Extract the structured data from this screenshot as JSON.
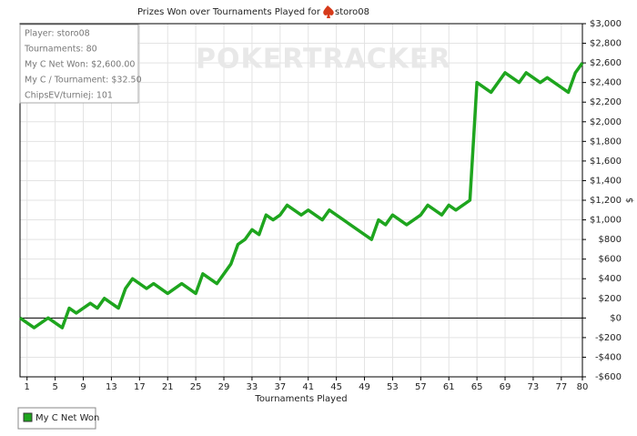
{
  "chart_data": {
    "type": "line",
    "title": "Prizes Won over Tournaments Played for",
    "player_name": "storo08",
    "watermark": "POKERTRACKER",
    "x_label": "Tournaments Played",
    "y_label": "$",
    "info_box": [
      "Player: storo08",
      "Tournaments: 80",
      "My C Net Won: $2,600.00",
      "My C / Tournament: $32.50",
      "ChipsEV/turniej: 101"
    ],
    "x": [
      0,
      2,
      4,
      6,
      7,
      8,
      10,
      11,
      12,
      13,
      14,
      15,
      16,
      18,
      19,
      21,
      23,
      25,
      26,
      28,
      30,
      31,
      32,
      33,
      34,
      35,
      36,
      37,
      38,
      40,
      41,
      43,
      44,
      50,
      51,
      52,
      53,
      55,
      57,
      58,
      60,
      61,
      62,
      64,
      65,
      67,
      69,
      71,
      72,
      74,
      75,
      78,
      79,
      80
    ],
    "series": [
      {
        "name": "My C Net Won",
        "color": "#1ea51e",
        "values": [
          0,
          -100,
          0,
          -100,
          100,
          50,
          150,
          100,
          200,
          150,
          100,
          300,
          400,
          300,
          350,
          250,
          350,
          250,
          450,
          350,
          550,
          750,
          800,
          900,
          850,
          1050,
          1000,
          1050,
          1150,
          1050,
          1100,
          1000,
          1100,
          800,
          1000,
          950,
          1050,
          950,
          1050,
          1150,
          1050,
          1150,
          1100,
          1200,
          2400,
          2300,
          2500,
          2400,
          2500,
          2400,
          2450,
          2300,
          2500,
          2600
        ]
      }
    ],
    "xlim": [
      0,
      80
    ],
    "xticks": [
      1,
      5,
      9,
      13,
      17,
      21,
      25,
      29,
      33,
      37,
      41,
      45,
      49,
      53,
      57,
      61,
      65,
      69,
      73,
      77,
      80
    ],
    "ylim": [
      -600,
      3000
    ],
    "yticks": [
      {
        "value": -600,
        "label": "-$600"
      },
      {
        "value": -400,
        "label": "-$400"
      },
      {
        "value": -200,
        "label": "-$200"
      },
      {
        "value": 0,
        "label": "$0"
      },
      {
        "value": 200,
        "label": "$200"
      },
      {
        "value": 400,
        "label": "$400"
      },
      {
        "value": 600,
        "label": "$600"
      },
      {
        "value": 800,
        "label": "$800"
      },
      {
        "value": 1000,
        "label": "$1,000"
      },
      {
        "value": 1200,
        "label": "$1,200"
      },
      {
        "value": 1400,
        "label": "$1,400"
      },
      {
        "value": 1600,
        "label": "$1,600"
      },
      {
        "value": 1800,
        "label": "$1,800"
      },
      {
        "value": 2000,
        "label": "$2,000"
      },
      {
        "value": 2200,
        "label": "$2,200"
      },
      {
        "value": 2400,
        "label": "$2,400"
      },
      {
        "value": 2600,
        "label": "$2,600"
      },
      {
        "value": 2800,
        "label": "$2,800"
      },
      {
        "value": 3000,
        "label": "$3,000"
      }
    ],
    "grid": true,
    "zero_line": true,
    "legend": "bottom-left"
  }
}
